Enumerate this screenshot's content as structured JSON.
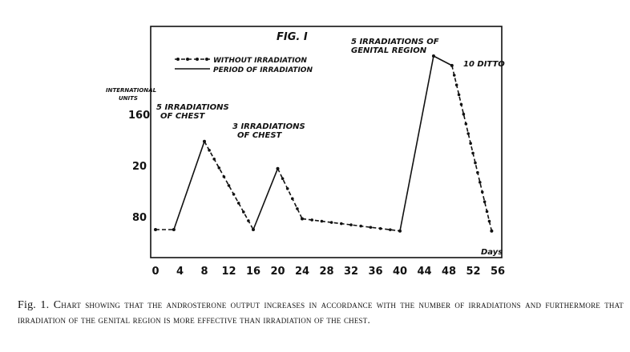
{
  "chart_data": {
    "type": "line",
    "title": "FIG. I",
    "ylabel": "INTERNATIONAL UNITS",
    "xlabel": "Days",
    "x_ticks": [
      "0",
      "4",
      "8",
      "12",
      "16",
      "20",
      "24",
      "28",
      "32",
      "36",
      "40",
      "44",
      "48",
      "52",
      "56"
    ],
    "y_ticks": [
      "160",
      "20",
      "80"
    ],
    "xlim": [
      0,
      56
    ],
    "legend": {
      "position": "top-left",
      "entries": [
        "WITHOUT IRRADIATION",
        "PERIOD OF IRRADIATION"
      ]
    },
    "series": [
      {
        "name": "Androsterone output",
        "points": [
          {
            "x": 0,
            "y": 105,
            "irradiation": false
          },
          {
            "x": 3,
            "y": 105,
            "irradiation": false
          },
          {
            "x": 8,
            "y": 170,
            "irradiation": true
          },
          {
            "x": 16,
            "y": 105,
            "irradiation": false
          },
          {
            "x": 20,
            "y": 150,
            "irradiation": true
          },
          {
            "x": 24,
            "y": 113,
            "irradiation": false
          },
          {
            "x": 40,
            "y": 104,
            "irradiation": false
          },
          {
            "x": 45.5,
            "y": 233,
            "irradiation": true
          },
          {
            "x": 48.5,
            "y": 226,
            "irradiation": true
          },
          {
            "x": 55,
            "y": 104,
            "irradiation": false
          }
        ]
      }
    ],
    "annotations": [
      {
        "lines": [
          "5 IRRADIATIONS",
          "OF CHEST"
        ]
      },
      {
        "lines": [
          "3 IRRADIATIONS",
          "OF CHEST"
        ]
      },
      {
        "lines": [
          "5 IRRADIATIONS OF",
          "GENITAL REGION"
        ]
      },
      {
        "lines": [
          "10 DITTO"
        ]
      }
    ]
  },
  "caption": {
    "lead": "Fig. 1. C",
    "text": "hart showing that the androsterone output increases in accordance with the number of irradiations and furthermore that irradiation of the genital region is more effective than irradiation of the chest."
  }
}
